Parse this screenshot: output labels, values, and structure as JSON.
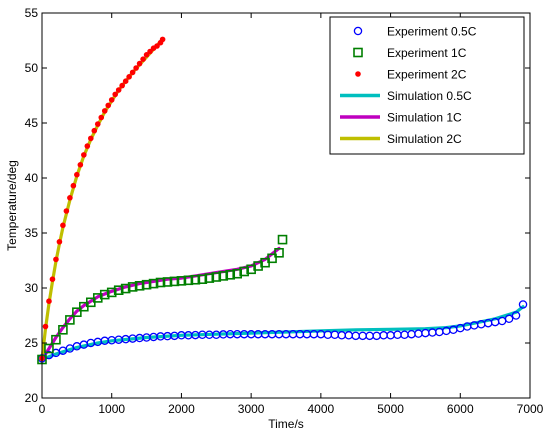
{
  "chart_data": {
    "type": "line",
    "title": "",
    "xlabel": "Time/s",
    "ylabel": "Temperature/deg",
    "xlim": [
      0,
      7000
    ],
    "ylim": [
      20,
      55
    ],
    "x_ticks": [
      "0",
      "1000",
      "2000",
      "3000",
      "4000",
      "5000",
      "6000",
      "7000"
    ],
    "y_ticks": [
      "20",
      "25",
      "30",
      "35",
      "40",
      "45",
      "50",
      "55"
    ],
    "grid": false,
    "legend_position": "top-right",
    "series": [
      {
        "name": "Experiment 0.5C",
        "kind": "marker",
        "marker": "circle",
        "color": "#0000ff",
        "x": [
          0,
          100,
          200,
          300,
          400,
          500,
          600,
          700,
          800,
          900,
          1000,
          1100,
          1200,
          1300,
          1400,
          1500,
          1600,
          1700,
          1800,
          1900,
          2000,
          2100,
          2200,
          2300,
          2400,
          2500,
          2600,
          2700,
          2800,
          2900,
          3000,
          3100,
          3200,
          3300,
          3400,
          3500,
          3600,
          3700,
          3800,
          3900,
          4000,
          4100,
          4200,
          4300,
          4400,
          4500,
          4600,
          4700,
          4800,
          4900,
          5000,
          5100,
          5200,
          5300,
          5400,
          5500,
          5600,
          5700,
          5800,
          5900,
          6000,
          6100,
          6200,
          6300,
          6400,
          6500,
          6600,
          6700,
          6800,
          6900
        ],
        "y": [
          23.6,
          23.9,
          24.1,
          24.3,
          24.5,
          24.7,
          24.85,
          25.0,
          25.1,
          25.2,
          25.25,
          25.3,
          25.35,
          25.4,
          25.45,
          25.5,
          25.55,
          25.6,
          25.62,
          25.65,
          25.7,
          25.7,
          25.72,
          25.75,
          25.75,
          25.75,
          25.78,
          25.8,
          25.8,
          25.8,
          25.8,
          25.8,
          25.8,
          25.8,
          25.8,
          25.8,
          25.8,
          25.8,
          25.8,
          25.8,
          25.8,
          25.75,
          25.75,
          25.7,
          25.7,
          25.65,
          25.65,
          25.65,
          25.65,
          25.7,
          25.7,
          25.75,
          25.75,
          25.8,
          25.85,
          25.9,
          25.95,
          26.0,
          26.1,
          26.2,
          26.35,
          26.5,
          26.6,
          26.7,
          26.8,
          26.9,
          27.0,
          27.2,
          27.5,
          28.5
        ]
      },
      {
        "name": "Experiment 1C",
        "kind": "marker",
        "marker": "square",
        "color": "#007f00",
        "x": [
          0,
          100,
          200,
          300,
          400,
          500,
          600,
          700,
          800,
          900,
          1000,
          1100,
          1200,
          1300,
          1400,
          1500,
          1600,
          1700,
          1800,
          1900,
          2000,
          2100,
          2200,
          2300,
          2400,
          2500,
          2600,
          2700,
          2800,
          2900,
          3000,
          3100,
          3200,
          3300,
          3400,
          3450
        ],
        "y": [
          23.5,
          24.5,
          25.3,
          26.2,
          27.1,
          27.8,
          28.3,
          28.7,
          29.1,
          29.4,
          29.6,
          29.8,
          29.95,
          30.1,
          30.2,
          30.3,
          30.4,
          30.5,
          30.55,
          30.6,
          30.65,
          30.7,
          30.75,
          30.8,
          30.9,
          31.0,
          31.1,
          31.2,
          31.3,
          31.5,
          31.7,
          32.0,
          32.3,
          32.7,
          33.2,
          34.4
        ]
      },
      {
        "name": "Experiment 2C",
        "kind": "marker",
        "marker": "dot",
        "color": "#ff0000",
        "x": [
          0,
          50,
          100,
          150,
          200,
          250,
          300,
          350,
          400,
          450,
          500,
          550,
          600,
          650,
          700,
          750,
          800,
          850,
          900,
          950,
          1000,
          1050,
          1100,
          1150,
          1200,
          1250,
          1300,
          1350,
          1400,
          1450,
          1500,
          1550,
          1600,
          1650,
          1700,
          1730
        ],
        "y": [
          23.6,
          26.5,
          28.8,
          30.8,
          32.6,
          34.2,
          35.7,
          37.0,
          38.2,
          39.3,
          40.3,
          41.2,
          42.1,
          42.9,
          43.6,
          44.3,
          44.9,
          45.5,
          46.1,
          46.6,
          47.1,
          47.6,
          48.0,
          48.4,
          48.8,
          49.2,
          49.6,
          50.0,
          50.4,
          50.8,
          51.2,
          51.5,
          51.8,
          52.0,
          52.3,
          52.6
        ]
      },
      {
        "name": "Simulation 0.5C",
        "kind": "line",
        "color": "#00bfbf",
        "x": [
          0,
          200,
          500,
          800,
          1000,
          1500,
          2000,
          2500,
          3000,
          3500,
          4000,
          4500,
          5000,
          5500,
          5800,
          6000,
          6200,
          6500,
          6800,
          6900
        ],
        "y": [
          23.5,
          24.0,
          24.6,
          25.0,
          25.2,
          25.5,
          25.7,
          25.8,
          25.9,
          26.0,
          26.1,
          26.2,
          26.25,
          26.3,
          26.4,
          26.55,
          26.8,
          27.2,
          27.8,
          28.3
        ]
      },
      {
        "name": "Simulation 1C",
        "kind": "line",
        "color": "#bf00bf",
        "x": [
          0,
          100,
          200,
          300,
          400,
          500,
          600,
          800,
          1000,
          1200,
          1400,
          1600,
          1800,
          2000,
          2200,
          2400,
          2600,
          2800,
          3000,
          3200,
          3400
        ],
        "y": [
          23.5,
          24.5,
          25.5,
          26.4,
          27.2,
          27.9,
          28.4,
          29.2,
          29.7,
          30.1,
          30.4,
          30.6,
          30.8,
          30.9,
          31.1,
          31.3,
          31.5,
          31.7,
          32.0,
          32.6,
          33.6
        ]
      },
      {
        "name": "Simulation 2C",
        "kind": "line",
        "color": "#bfbf00",
        "x": [
          0,
          50,
          100,
          150,
          200,
          250,
          300,
          400,
          500,
          600,
          700,
          800,
          900,
          1000,
          1100,
          1200,
          1300,
          1400,
          1500,
          1600,
          1700,
          1730
        ],
        "y": [
          23.5,
          26.3,
          28.6,
          30.6,
          32.4,
          34.0,
          35.5,
          38.0,
          40.2,
          42.0,
          43.5,
          44.8,
          46.0,
          47.0,
          48.0,
          48.8,
          49.6,
          50.3,
          51.0,
          51.7,
          52.4,
          52.6
        ]
      }
    ]
  }
}
